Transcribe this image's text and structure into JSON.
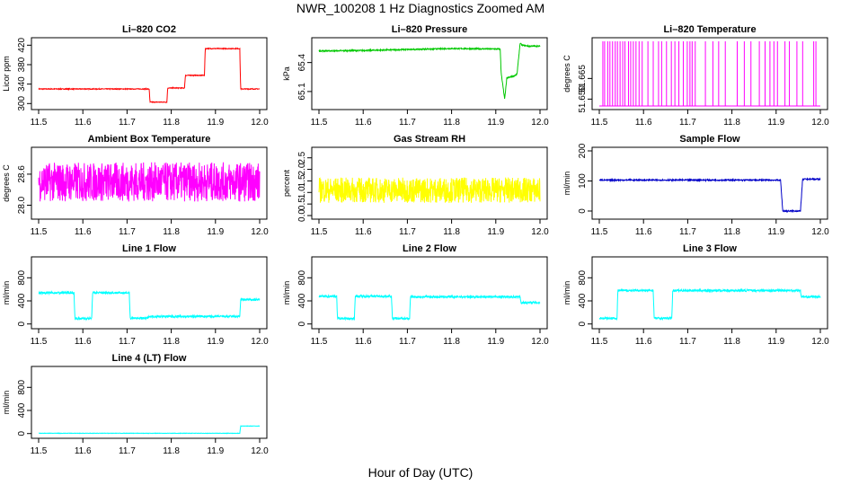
{
  "title": "NWR_100208  1 Hz Diagnostics Zoomed AM",
  "xlabel": "Hour of Day (UTC)",
  "colors": {
    "red": "#ff0000",
    "green": "#00c800",
    "magenta": "#ff00ff",
    "yellow": "#ffff00",
    "blue": "#0000c8",
    "cyan": "#00ffff"
  },
  "chart_data": [
    {
      "type": "line",
      "title": "Li–820 CO2",
      "ylabel": "Licor ppm",
      "color": "red",
      "noise": 0.8,
      "xlim": [
        11.5,
        12.0
      ],
      "ylim": [
        295,
        428
      ],
      "yticks": [
        300,
        340,
        380,
        420
      ],
      "ytick_labels": [
        "300",
        "340",
        "380",
        "420"
      ],
      "xticks": [
        11.5,
        11.6,
        11.7,
        11.8,
        11.9,
        12.0
      ],
      "xtick_labels": [
        "11.5",
        "11.6",
        "11.7",
        "11.8",
        "11.9",
        "12.0"
      ],
      "x": [
        11.5,
        11.75,
        11.752,
        11.79,
        11.792,
        11.83,
        11.832,
        11.875,
        11.877,
        11.955,
        11.957,
        12.0
      ],
      "y": [
        330,
        330,
        303,
        303,
        332,
        332,
        358,
        358,
        413,
        413,
        330,
        330
      ]
    },
    {
      "type": "line",
      "title": "Li–820 Pressure",
      "ylabel": "kPa",
      "color": "green",
      "noise": 0.006,
      "xlim": [
        11.5,
        12.0
      ],
      "ylim": [
        64.95,
        65.62
      ],
      "yticks": [
        65.1,
        65.4
      ],
      "ytick_labels": [
        "65.1",
        "65.4"
      ],
      "xticks": [
        11.5,
        11.6,
        11.7,
        11.8,
        11.9,
        12.0
      ],
      "xtick_labels": [
        "11.5",
        "11.6",
        "11.7",
        "11.8",
        "11.9",
        "12.0"
      ],
      "x": [
        11.5,
        11.6,
        11.7,
        11.8,
        11.91,
        11.912,
        11.92,
        11.925,
        11.94,
        11.948,
        11.955,
        11.96,
        11.975,
        12.0
      ],
      "y": [
        65.52,
        65.525,
        65.535,
        65.545,
        65.54,
        65.3,
        65.02,
        65.24,
        65.26,
        65.28,
        65.6,
        65.58,
        65.57,
        65.57
      ]
    },
    {
      "type": "line",
      "title": "Li–820 Temperature",
      "ylabel": "degrees C",
      "color": "magenta",
      "noise": 0,
      "xlim": [
        11.5,
        12.0
      ],
      "ylim": [
        51.645,
        51.692
      ],
      "yticks": [
        51.65,
        51.665
      ],
      "ytick_labels": [
        "51.650",
        "51.665"
      ],
      "xticks": [
        11.5,
        11.6,
        11.7,
        11.8,
        11.9,
        12.0
      ],
      "xtick_labels": [
        "11.5",
        "11.6",
        "11.7",
        "11.8",
        "11.9",
        "12.0"
      ],
      "x": [
        11.5,
        12.0
      ],
      "y": [
        51.645,
        51.645
      ],
      "spikes": [
        11.508,
        11.512,
        11.519,
        11.524,
        11.53,
        11.536,
        11.541,
        11.547,
        11.553,
        11.558,
        11.566,
        11.571,
        11.577,
        11.583,
        11.59,
        11.597,
        11.61,
        11.622,
        11.634,
        11.641,
        11.652,
        11.663,
        11.671,
        11.68,
        11.69,
        11.699,
        11.705,
        11.71,
        11.717,
        11.74,
        11.757,
        11.77,
        11.785,
        11.812,
        11.828,
        11.843,
        11.862,
        11.875,
        11.886,
        11.895,
        11.903,
        11.92,
        11.93,
        11.947,
        11.96,
        11.985,
        11.99
      ]
    },
    {
      "type": "line",
      "title": "Ambient Box Temperature",
      "ylabel": "degrees C",
      "color": "magenta",
      "noise": 0.38,
      "xlim": [
        11.5,
        12.0
      ],
      "ylim": [
        27.8,
        29.05
      ],
      "yticks": [
        28.0,
        28.6
      ],
      "ytick_labels": [
        "28.0",
        "28.6"
      ],
      "xticks": [
        11.5,
        11.6,
        11.7,
        11.8,
        11.9,
        12.0
      ],
      "xtick_labels": [
        "11.5",
        "11.6",
        "11.7",
        "11.8",
        "11.9",
        "12.0"
      ],
      "x": [
        11.5,
        12.0
      ],
      "y": [
        28.45,
        28.45
      ]
    },
    {
      "type": "line",
      "title": "Gas Stream RH",
      "ylabel": "percent",
      "color": "yellow",
      "noise": 0.55,
      "xlim": [
        11.5,
        12.0
      ],
      "ylim": [
        0.0,
        2.8
      ],
      "yticks": [
        0.0,
        0.5,
        1.0,
        1.5,
        2.0,
        2.5
      ],
      "ytick_labels": [
        "0.0",
        "0.5",
        "1.0",
        "1.5",
        "2.0",
        "2.5"
      ],
      "xticks": [
        11.5,
        11.6,
        11.7,
        11.8,
        11.9,
        12.0
      ],
      "xtick_labels": [
        "11.5",
        "11.6",
        "11.7",
        "11.8",
        "11.9",
        "12.0"
      ],
      "x": [
        11.5,
        12.0
      ],
      "y": [
        1.1,
        1.1
      ]
    },
    {
      "type": "line",
      "title": "Sample Flow",
      "ylabel": "ml/min",
      "color": "blue",
      "noise": 2,
      "xlim": [
        11.5,
        12.0
      ],
      "ylim": [
        -15,
        200
      ],
      "yticks": [
        0,
        100,
        200
      ],
      "ytick_labels": [
        "0",
        "100",
        "200"
      ],
      "xticks": [
        11.5,
        11.6,
        11.7,
        11.8,
        11.9,
        12.0
      ],
      "xtick_labels": [
        "11.5",
        "11.6",
        "11.7",
        "11.8",
        "11.9",
        "12.0"
      ],
      "x": [
        11.5,
        11.91,
        11.915,
        11.955,
        11.96,
        12.0
      ],
      "y": [
        103,
        103,
        0,
        0,
        106,
        106
      ]
    },
    {
      "type": "line",
      "title": "Line 1 Flow",
      "ylabel": "ml/min",
      "color": "cyan",
      "noise": 18,
      "xlim": [
        11.5,
        12.0
      ],
      "ylim": [
        -20,
        1100
      ],
      "yticks": [
        0,
        400,
        800
      ],
      "ytick_labels": [
        "0",
        "400",
        "800"
      ],
      "xticks": [
        11.5,
        11.6,
        11.7,
        11.8,
        11.9,
        12.0
      ],
      "xtick_labels": [
        "11.5",
        "11.6",
        "11.7",
        "11.8",
        "11.9",
        "12.0"
      ],
      "x": [
        11.5,
        11.58,
        11.582,
        11.62,
        11.622,
        11.705,
        11.707,
        11.747,
        11.749,
        11.955,
        11.957,
        12.0
      ],
      "y": [
        540,
        540,
        95,
        95,
        540,
        540,
        100,
        100,
        130,
        130,
        420,
        420
      ]
    },
    {
      "type": "line",
      "title": "Line 2 Flow",
      "ylabel": "ml/min",
      "color": "cyan",
      "noise": 18,
      "xlim": [
        11.5,
        12.0
      ],
      "ylim": [
        -20,
        1100
      ],
      "yticks": [
        0,
        400,
        800
      ],
      "ytick_labels": [
        "0",
        "400",
        "800"
      ],
      "xticks": [
        11.5,
        11.6,
        11.7,
        11.8,
        11.9,
        12.0
      ],
      "xtick_labels": [
        "11.5",
        "11.6",
        "11.7",
        "11.8",
        "11.9",
        "12.0"
      ],
      "x": [
        11.5,
        11.54,
        11.542,
        11.58,
        11.582,
        11.664,
        11.666,
        11.705,
        11.707,
        11.955,
        11.957,
        12.0
      ],
      "y": [
        480,
        480,
        95,
        95,
        480,
        480,
        95,
        95,
        470,
        470,
        370,
        370
      ]
    },
    {
      "type": "line",
      "title": "Line 3 Flow",
      "ylabel": "ml/min",
      "color": "cyan",
      "noise": 18,
      "xlim": [
        11.5,
        12.0
      ],
      "ylim": [
        -20,
        1100
      ],
      "yticks": [
        0,
        400,
        800
      ],
      "ytick_labels": [
        "0",
        "400",
        "800"
      ],
      "xticks": [
        11.5,
        11.6,
        11.7,
        11.8,
        11.9,
        12.0
      ],
      "xtick_labels": [
        "11.5",
        "11.6",
        "11.7",
        "11.8",
        "11.9",
        "12.0"
      ],
      "x": [
        11.5,
        11.54,
        11.542,
        11.622,
        11.624,
        11.664,
        11.666,
        11.955,
        11.957,
        12.0
      ],
      "y": [
        100,
        100,
        580,
        580,
        100,
        100,
        580,
        580,
        470,
        470
      ]
    },
    {
      "type": "line",
      "title": "Line 4 (LT) Flow",
      "ylabel": "ml/min",
      "color": "cyan",
      "noise": 3,
      "xlim": [
        11.5,
        12.0
      ],
      "ylim": [
        -20,
        1100
      ],
      "yticks": [
        0,
        400,
        800
      ],
      "ytick_labels": [
        "0",
        "400",
        "800"
      ],
      "xticks": [
        11.5,
        11.6,
        11.7,
        11.8,
        11.9,
        12.0
      ],
      "xtick_labels": [
        "11.5",
        "11.6",
        "11.7",
        "11.8",
        "11.9",
        "12.0"
      ],
      "x": [
        11.5,
        11.955,
        11.957,
        12.0
      ],
      "y": [
        5,
        5,
        130,
        130
      ]
    }
  ]
}
